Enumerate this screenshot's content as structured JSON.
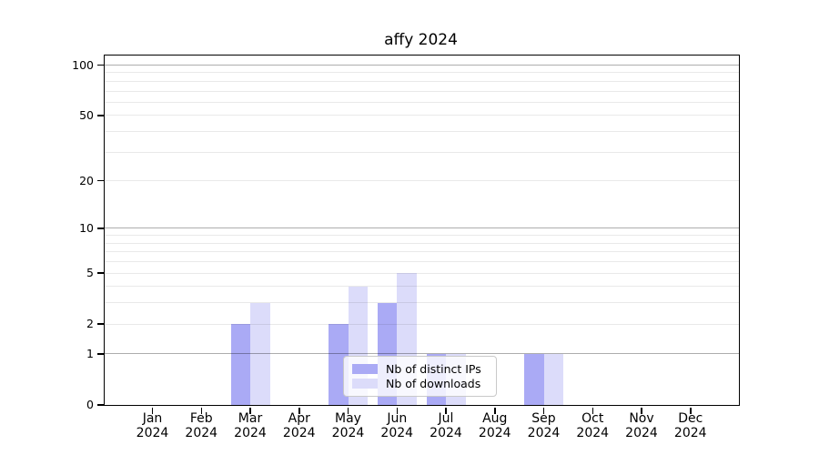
{
  "chart_data": {
    "type": "bar",
    "title": "affy 2024",
    "categories": [
      "Jan",
      "Feb",
      "Mar",
      "Apr",
      "May",
      "Jun",
      "Jul",
      "Aug",
      "Sep",
      "Oct",
      "Nov",
      "Dec"
    ],
    "year": "2024",
    "series": [
      {
        "name": "Nb of distinct IPs",
        "color": "#aaaaf5",
        "values": [
          0,
          0,
          2,
          0,
          2,
          3,
          1,
          0,
          1,
          0,
          0,
          0
        ]
      },
      {
        "name": "Nb of downloads",
        "color": "#dcdcfa",
        "values": [
          0,
          0,
          3,
          0,
          4,
          5,
          1,
          0,
          1,
          0,
          0,
          0
        ]
      }
    ],
    "yscale": "log1p",
    "ylim": [
      0,
      114
    ],
    "yticks": [
      100,
      50,
      20,
      10,
      5,
      2,
      1,
      0
    ],
    "grid": {
      "major": [
        1,
        10,
        100
      ],
      "minor": [
        2,
        3,
        4,
        5,
        6,
        7,
        8,
        9,
        20,
        30,
        40,
        50,
        60,
        70,
        80,
        90
      ],
      "major_color": "#b3b3b3",
      "minor_color": "#e9e9e9"
    },
    "legend_position": "bottom-center",
    "axis_color": "#000000",
    "background_color": "#ffffff"
  }
}
